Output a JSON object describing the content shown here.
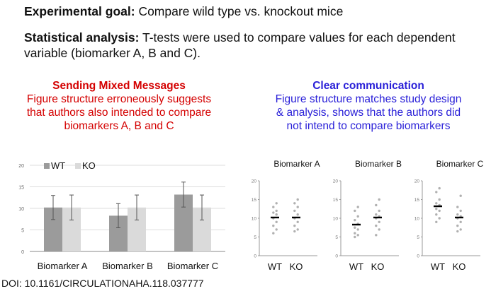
{
  "header": {
    "goal_label": "Experimental goal:",
    "goal_text": " Compare wild type vs. knockout mice",
    "stats_label": "Statistical analysis:",
    "stats_text": " T-tests were used to compare values for each dependent variable  (biomarker A, B and C)."
  },
  "left_panel": {
    "title": "Sending Mixed Messages",
    "line1": "Figure structure erroneously suggests",
    "line2": "that authors also intended to compare",
    "line3": "biomarkers A, B and C"
  },
  "right_panel": {
    "title": "Clear communication",
    "line1": "Figure structure matches study design",
    "line2": "& analysis, shows that the authors did",
    "line3": "not intend to compare biomarkers"
  },
  "doi": "DOI: 10.1161/CIRCULATIONAHA.118.037777",
  "colors": {
    "wt": "#9b9b9b",
    "ko": "#dadada",
    "red": "#d40000",
    "blue": "#2a20d8",
    "dots": "#b0b0b0",
    "mean": "#000000"
  },
  "chart_data": [
    {
      "type": "bar",
      "categories": [
        "Biomarker A",
        "Biomarker B",
        "Biomarker C"
      ],
      "series": [
        {
          "name": "WT",
          "values": [
            10.2,
            8.3,
            13.2
          ],
          "error": [
            2.8,
            2.8,
            2.9
          ]
        },
        {
          "name": "KO",
          "values": [
            10.2,
            10.2,
            10.2
          ],
          "error": [
            2.9,
            2.9,
            2.9
          ]
        }
      ],
      "ylim": [
        0,
        20
      ],
      "yticks": [
        "0",
        "5",
        "10",
        "15",
        "20"
      ],
      "legend": "top-left",
      "grid": true
    },
    {
      "type": "scatter",
      "panels": [
        {
          "title": "Biomarker A",
          "groups": [
            {
              "name": "WT",
              "values": [
                6.0,
                7.0,
                8.0,
                9.0,
                10.0,
                11.0,
                11.5,
                12.0,
                13.0,
                14.0
              ],
              "mean": 10.2
            },
            {
              "name": "KO",
              "values": [
                6.5,
                7.0,
                8.0,
                9.0,
                10.0,
                11.0,
                12.0,
                13.0,
                14.0,
                15.0
              ],
              "mean": 10.2
            }
          ]
        },
        {
          "title": "Biomarker B",
          "groups": [
            {
              "name": "WT",
              "values": [
                5.0,
                5.5,
                6.0,
                7.0,
                7.5,
                8.5,
                9.5,
                10.5,
                12.0,
                13.0
              ],
              "mean": 8.3
            },
            {
              "name": "KO",
              "values": [
                5.5,
                7.0,
                8.0,
                9.0,
                10.0,
                10.5,
                11.0,
                12.0,
                13.5,
                15.0
              ],
              "mean": 10.2
            }
          ]
        },
        {
          "title": "Biomarker C",
          "groups": [
            {
              "name": "WT",
              "values": [
                9.0,
                10.0,
                11.0,
                12.0,
                12.5,
                13.5,
                14.0,
                15.0,
                17.0,
                18.0
              ],
              "mean": 13.2
            },
            {
              "name": "KO",
              "values": [
                6.5,
                7.0,
                8.0,
                9.0,
                10.0,
                10.5,
                11.0,
                12.0,
                13.0,
                16.0
              ],
              "mean": 10.2
            }
          ]
        }
      ],
      "ylim": [
        0,
        20
      ],
      "yticks": [
        "0",
        "5",
        "10",
        "15",
        "20"
      ]
    }
  ]
}
